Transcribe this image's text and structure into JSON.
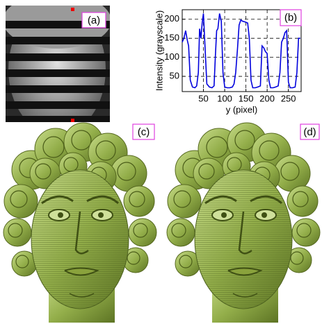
{
  "panel_labels": [
    "(a)",
    "(b)",
    "(c)",
    "(d)"
  ],
  "chart_data": {
    "type": "line",
    "xlabel": "y (pixel)",
    "ylabel": "Intensity (grayscale)",
    "x": [
      0,
      4,
      8,
      12,
      15,
      19,
      24,
      30,
      34,
      38,
      41,
      44,
      47,
      50,
      54,
      58,
      64,
      70,
      75,
      78,
      81,
      84,
      88,
      92,
      96,
      100,
      106,
      112,
      118,
      122,
      126,
      130,
      134,
      138,
      142,
      148,
      154,
      158,
      162,
      166,
      172,
      178,
      184,
      188,
      192,
      196,
      200,
      204,
      208,
      214,
      220,
      226,
      230,
      234,
      238,
      242,
      246,
      250,
      254,
      260,
      266,
      270,
      274,
      278
    ],
    "values": [
      140,
      150,
      170,
      145,
      130,
      40,
      22,
      20,
      25,
      60,
      175,
      150,
      190,
      215,
      120,
      30,
      22,
      20,
      25,
      100,
      170,
      175,
      215,
      195,
      60,
      22,
      20,
      20,
      22,
      30,
      60,
      120,
      185,
      198,
      195,
      193,
      190,
      150,
      40,
      20,
      20,
      22,
      25,
      130,
      125,
      115,
      110,
      40,
      20,
      20,
      22,
      25,
      60,
      140,
      150,
      165,
      170,
      35,
      20,
      20,
      22,
      60,
      150,
      150
    ],
    "color": "#0000dd",
    "xlim": [
      0,
      280
    ],
    "ylim": [
      10,
      225
    ],
    "xticks": [
      50,
      100,
      150,
      200,
      250
    ],
    "yticks": [
      50,
      100,
      150,
      200
    ],
    "grid": true
  }
}
